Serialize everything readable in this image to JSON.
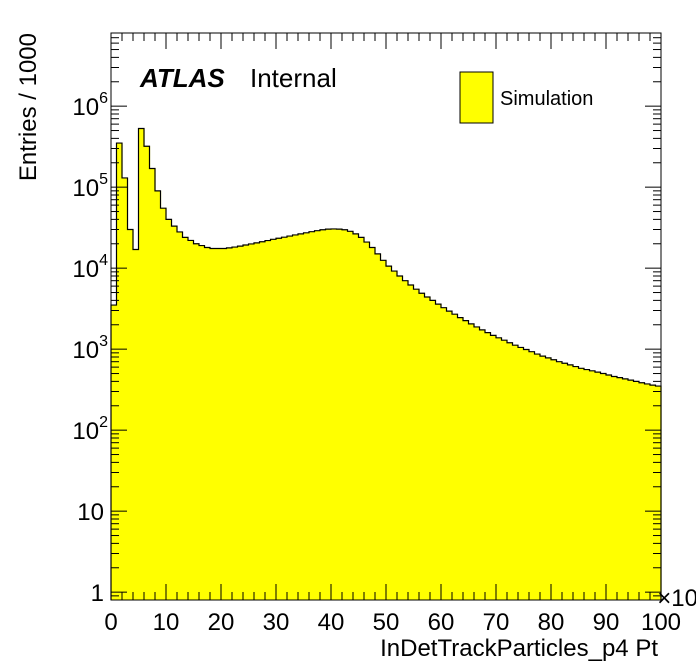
{
  "chart_data": {
    "type": "bar",
    "style": "histogram-step",
    "xlabel": "InDetTrackParticles_p4 Pt",
    "ylabel": "Entries / 1000",
    "x_multiplier_label": "×10",
    "xlim": [
      0,
      100
    ],
    "ylim": [
      0.8,
      8000000
    ],
    "yscale": "log",
    "x_ticks": [
      0,
      10,
      20,
      30,
      40,
      50,
      60,
      70,
      80,
      90,
      100
    ],
    "x_tick_labels": [
      "0",
      "10",
      "20",
      "30",
      "40",
      "50",
      "60",
      "70",
      "80",
      "90",
      "100"
    ],
    "y_ticks": [
      {
        "value": 1,
        "base": "1",
        "exp": ""
      },
      {
        "value": 10,
        "base": "10",
        "exp": ""
      },
      {
        "value": 100,
        "base": "10",
        "exp": "2"
      },
      {
        "value": 1000,
        "base": "10",
        "exp": "3"
      },
      {
        "value": 10000,
        "base": "10",
        "exp": "4"
      },
      {
        "value": 100000,
        "base": "10",
        "exp": "5"
      },
      {
        "value": 1000000,
        "base": "10",
        "exp": "6"
      }
    ],
    "atlas_label": "ATLAS",
    "atlas_sublabel": "Internal",
    "legend": {
      "placement": "top-right",
      "entries": [
        {
          "label": "Simulation",
          "color": "#ffff00"
        }
      ]
    },
    "fill_color": "#ffff00",
    "line_color": "#000000",
    "series": [
      {
        "name": "Simulation",
        "bin_edges_start": 0,
        "bin_width": 1,
        "values": [
          3500,
          350000,
          130000,
          30000,
          17000,
          530000,
          320000,
          170000,
          90000,
          55000,
          40000,
          33000,
          28000,
          24000,
          22000,
          20000,
          19000,
          18000,
          17500,
          17500,
          17500,
          17800,
          18200,
          18700,
          19300,
          19900,
          20500,
          21200,
          21900,
          22700,
          23400,
          24100,
          24900,
          25700,
          26500,
          27300,
          28200,
          29000,
          29800,
          30300,
          30500,
          30300,
          29800,
          28500,
          26500,
          24000,
          21000,
          18000,
          15000,
          12500,
          10600,
          9200,
          8000,
          7000,
          6200,
          5500,
          4900,
          4400,
          4000,
          3600,
          3250,
          2950,
          2700,
          2450,
          2250,
          2050,
          1880,
          1730,
          1600,
          1480,
          1380,
          1290,
          1200,
          1120,
          1050,
          990,
          930,
          870,
          820,
          780,
          740,
          700,
          670,
          640,
          610,
          580,
          560,
          540,
          520,
          500,
          480,
          460,
          445,
          430,
          415,
          400,
          385,
          372,
          360,
          350
        ]
      }
    ]
  }
}
